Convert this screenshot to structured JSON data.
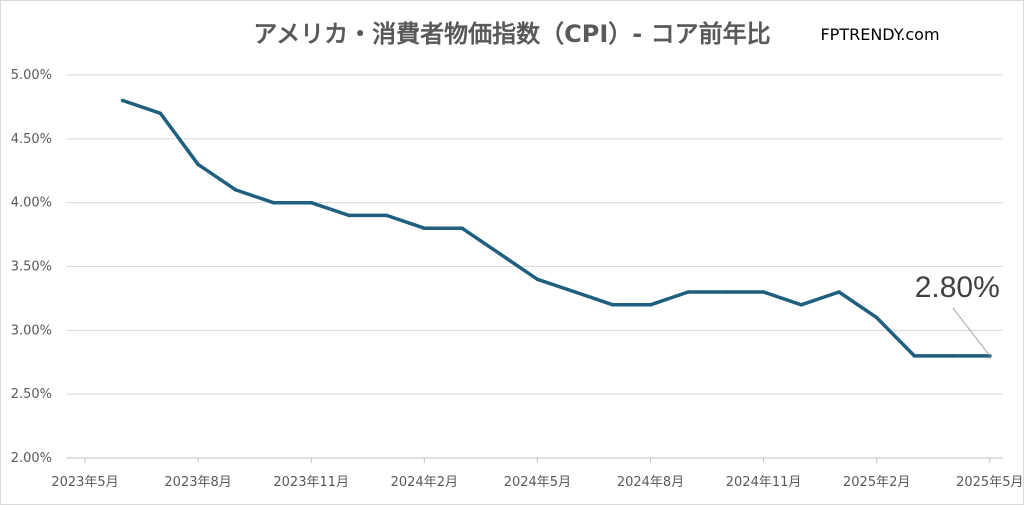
{
  "chart_data": {
    "type": "line",
    "title": "アメリカ・消費者物価指数（CPI）- コア前年比",
    "brand": "FPTRENDY.com",
    "xlabel": "",
    "ylabel": "",
    "ylim": [
      0.02,
      0.05
    ],
    "y_ticks": [
      "2.00%",
      "2.50%",
      "3.00%",
      "3.50%",
      "4.00%",
      "4.50%",
      "5.00%"
    ],
    "x_ticks": [
      "2023年5月",
      "2023年8月",
      "2023年11月",
      "2024年2月",
      "2024年5月",
      "2024年8月",
      "2024年11月",
      "2025年2月",
      "2025年5月"
    ],
    "grid": true,
    "legend": "none",
    "line_color": "#1f5f7f",
    "series": [
      {
        "x": [
          "2023-06",
          "2023-07",
          "2023-08",
          "2023-09",
          "2023-10",
          "2023-11",
          "2023-12",
          "2024-01",
          "2024-02",
          "2024-03",
          "2024-04",
          "2024-05",
          "2024-06",
          "2024-07",
          "2024-08",
          "2024-09",
          "2024-10",
          "2024-11",
          "2024-12",
          "2025-01",
          "2025-02",
          "2025-03",
          "2025-04",
          "2025-05"
        ],
        "values": [
          0.048,
          0.047,
          0.043,
          0.041,
          0.04,
          0.04,
          0.039,
          0.039,
          0.038,
          0.038,
          0.036,
          0.034,
          0.033,
          0.032,
          0.032,
          0.033,
          0.033,
          0.033,
          0.032,
          0.033,
          0.031,
          0.028,
          0.028,
          0.028
        ]
      }
    ],
    "annotation": {
      "text": "2.80%",
      "at": "2025-05"
    }
  }
}
